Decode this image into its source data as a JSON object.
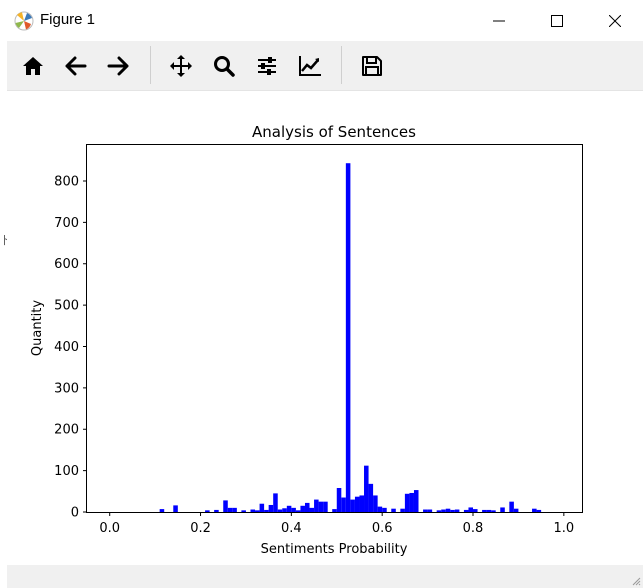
{
  "window": {
    "title": "Figure 1"
  },
  "toolbar": {
    "items": [
      {
        "name": "home-icon"
      },
      {
        "name": "back-arrow-icon"
      },
      {
        "name": "forward-arrow-icon"
      },
      {
        "name": "pan-move-icon"
      },
      {
        "name": "zoom-magnifier-icon"
      },
      {
        "name": "configure-subplots-icon"
      },
      {
        "name": "edit-axis-icon"
      },
      {
        "name": "save-floppy-icon"
      }
    ]
  },
  "colors": {
    "bars": "#0000ff",
    "toolbar_bg": "#f0f0f0"
  },
  "chart_data": {
    "type": "bar",
    "title": "Analysis of Sentences",
    "xlabel": "Sentiments Probability",
    "ylabel": "Quantity",
    "xlim": [
      -0.05,
      1.04
    ],
    "ylim": [
      0,
      887
    ],
    "xticks": [
      "0.0",
      "0.2",
      "0.4",
      "0.6",
      "0.8",
      "1.0"
    ],
    "yticks": [
      "0",
      "100",
      "200",
      "300",
      "400",
      "500",
      "600",
      "700",
      "800"
    ],
    "bin_width": 0.01,
    "series": [
      {
        "bins": [
          [
            0.11,
            7
          ],
          [
            0.14,
            16
          ],
          [
            0.21,
            4
          ],
          [
            0.23,
            5
          ],
          [
            0.25,
            28
          ],
          [
            0.26,
            10
          ],
          [
            0.27,
            10
          ],
          [
            0.29,
            4
          ],
          [
            0.31,
            6
          ],
          [
            0.32,
            4
          ],
          [
            0.33,
            20
          ],
          [
            0.34,
            5
          ],
          [
            0.35,
            17
          ],
          [
            0.36,
            45
          ],
          [
            0.37,
            6
          ],
          [
            0.38,
            9
          ],
          [
            0.39,
            15
          ],
          [
            0.4,
            10
          ],
          [
            0.41,
            4
          ],
          [
            0.42,
            15
          ],
          [
            0.43,
            22
          ],
          [
            0.44,
            10
          ],
          [
            0.45,
            30
          ],
          [
            0.46,
            25
          ],
          [
            0.47,
            25
          ],
          [
            0.49,
            7
          ],
          [
            0.5,
            58
          ],
          [
            0.51,
            35
          ],
          [
            0.52,
            843
          ],
          [
            0.53,
            30
          ],
          [
            0.54,
            37
          ],
          [
            0.55,
            40
          ],
          [
            0.56,
            112
          ],
          [
            0.57,
            68
          ],
          [
            0.58,
            40
          ],
          [
            0.59,
            13
          ],
          [
            0.6,
            10
          ],
          [
            0.62,
            8
          ],
          [
            0.64,
            8
          ],
          [
            0.65,
            44
          ],
          [
            0.66,
            46
          ],
          [
            0.67,
            53
          ],
          [
            0.69,
            6
          ],
          [
            0.7,
            6
          ],
          [
            0.72,
            4
          ],
          [
            0.73,
            6
          ],
          [
            0.74,
            8
          ],
          [
            0.75,
            5
          ],
          [
            0.76,
            6
          ],
          [
            0.78,
            5
          ],
          [
            0.79,
            11
          ],
          [
            0.8,
            7
          ],
          [
            0.82,
            5
          ],
          [
            0.83,
            5
          ],
          [
            0.84,
            4
          ],
          [
            0.86,
            11
          ],
          [
            0.88,
            25
          ],
          [
            0.89,
            8
          ],
          [
            0.93,
            8
          ],
          [
            0.94,
            5
          ]
        ]
      }
    ]
  }
}
